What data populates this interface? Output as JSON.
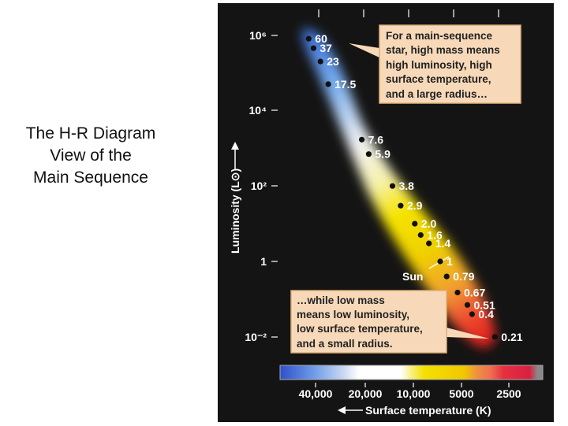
{
  "slide": {
    "title_lines": [
      "The H-R Diagram",
      "View of the",
      "Main Sequence"
    ]
  },
  "colors": {
    "panel_background": "#141414",
    "callout_fill": "#f7d9b9",
    "callout_border": "#dcb079",
    "star_dot": "#111111",
    "label_text": "#ffffff"
  },
  "chart_data": {
    "type": "scatter",
    "title": "",
    "xlabel": "Surface temperature (K)",
    "ylabel": "Luminosity (L⊙)",
    "x_scale": "log",
    "x_reversed": true,
    "y_scale": "log",
    "y_ticks": [
      "10⁶",
      "10⁴",
      "10²",
      "1",
      "10⁻²"
    ],
    "y_tick_values": [
      1000000,
      10000,
      100,
      1,
      0.01
    ],
    "x_ticks": [
      "40,000",
      "20,000",
      "10,000",
      "5000",
      "2500"
    ],
    "x_tick_values": [
      40000,
      20000,
      10000,
      5000,
      2500
    ],
    "ylim": [
      0.003,
      3000000
    ],
    "xlim": [
      60000,
      1700
    ],
    "points": [
      {
        "label": "60",
        "temperature": 45000,
        "luminosity": 800000
      },
      {
        "label": "37",
        "temperature": 42000,
        "luminosity": 450000
      },
      {
        "label": "23",
        "temperature": 38000,
        "luminosity": 200000
      },
      {
        "label": "17.5",
        "temperature": 34000,
        "luminosity": 50000
      },
      {
        "label": "7.6",
        "temperature": 21000,
        "luminosity": 1700
      },
      {
        "label": "5.9",
        "temperature": 19000,
        "luminosity": 700
      },
      {
        "label": "3.8",
        "temperature": 13500,
        "luminosity": 100
      },
      {
        "label": "2.9",
        "temperature": 12000,
        "luminosity": 30
      },
      {
        "label": "2.0",
        "temperature": 9800,
        "luminosity": 10
      },
      {
        "label": "1.6",
        "temperature": 9000,
        "luminosity": 5
      },
      {
        "label": "1.4",
        "temperature": 8000,
        "luminosity": 3
      },
      {
        "label": "1",
        "temperature": 6800,
        "luminosity": 1
      },
      {
        "label": "0.79",
        "temperature": 6200,
        "luminosity": 0.4
      },
      {
        "label": "0.67",
        "temperature": 5300,
        "luminosity": 0.15
      },
      {
        "label": "0.51",
        "temperature": 4600,
        "luminosity": 0.07
      },
      {
        "label": "0.4",
        "temperature": 4300,
        "luminosity": 0.04
      },
      {
        "label": "0.21",
        "temperature": 3100,
        "luminosity": 0.01
      }
    ],
    "annotations": {
      "sun_label": "Sun",
      "callout_high": [
        "For a main-sequence",
        "star, high mass means",
        "high luminosity, high",
        "surface temperature,",
        "and a large radius…"
      ],
      "callout_low": [
        "…while low mass",
        "means low luminosity,",
        "low surface temperature,",
        "and a small radius."
      ]
    }
  }
}
